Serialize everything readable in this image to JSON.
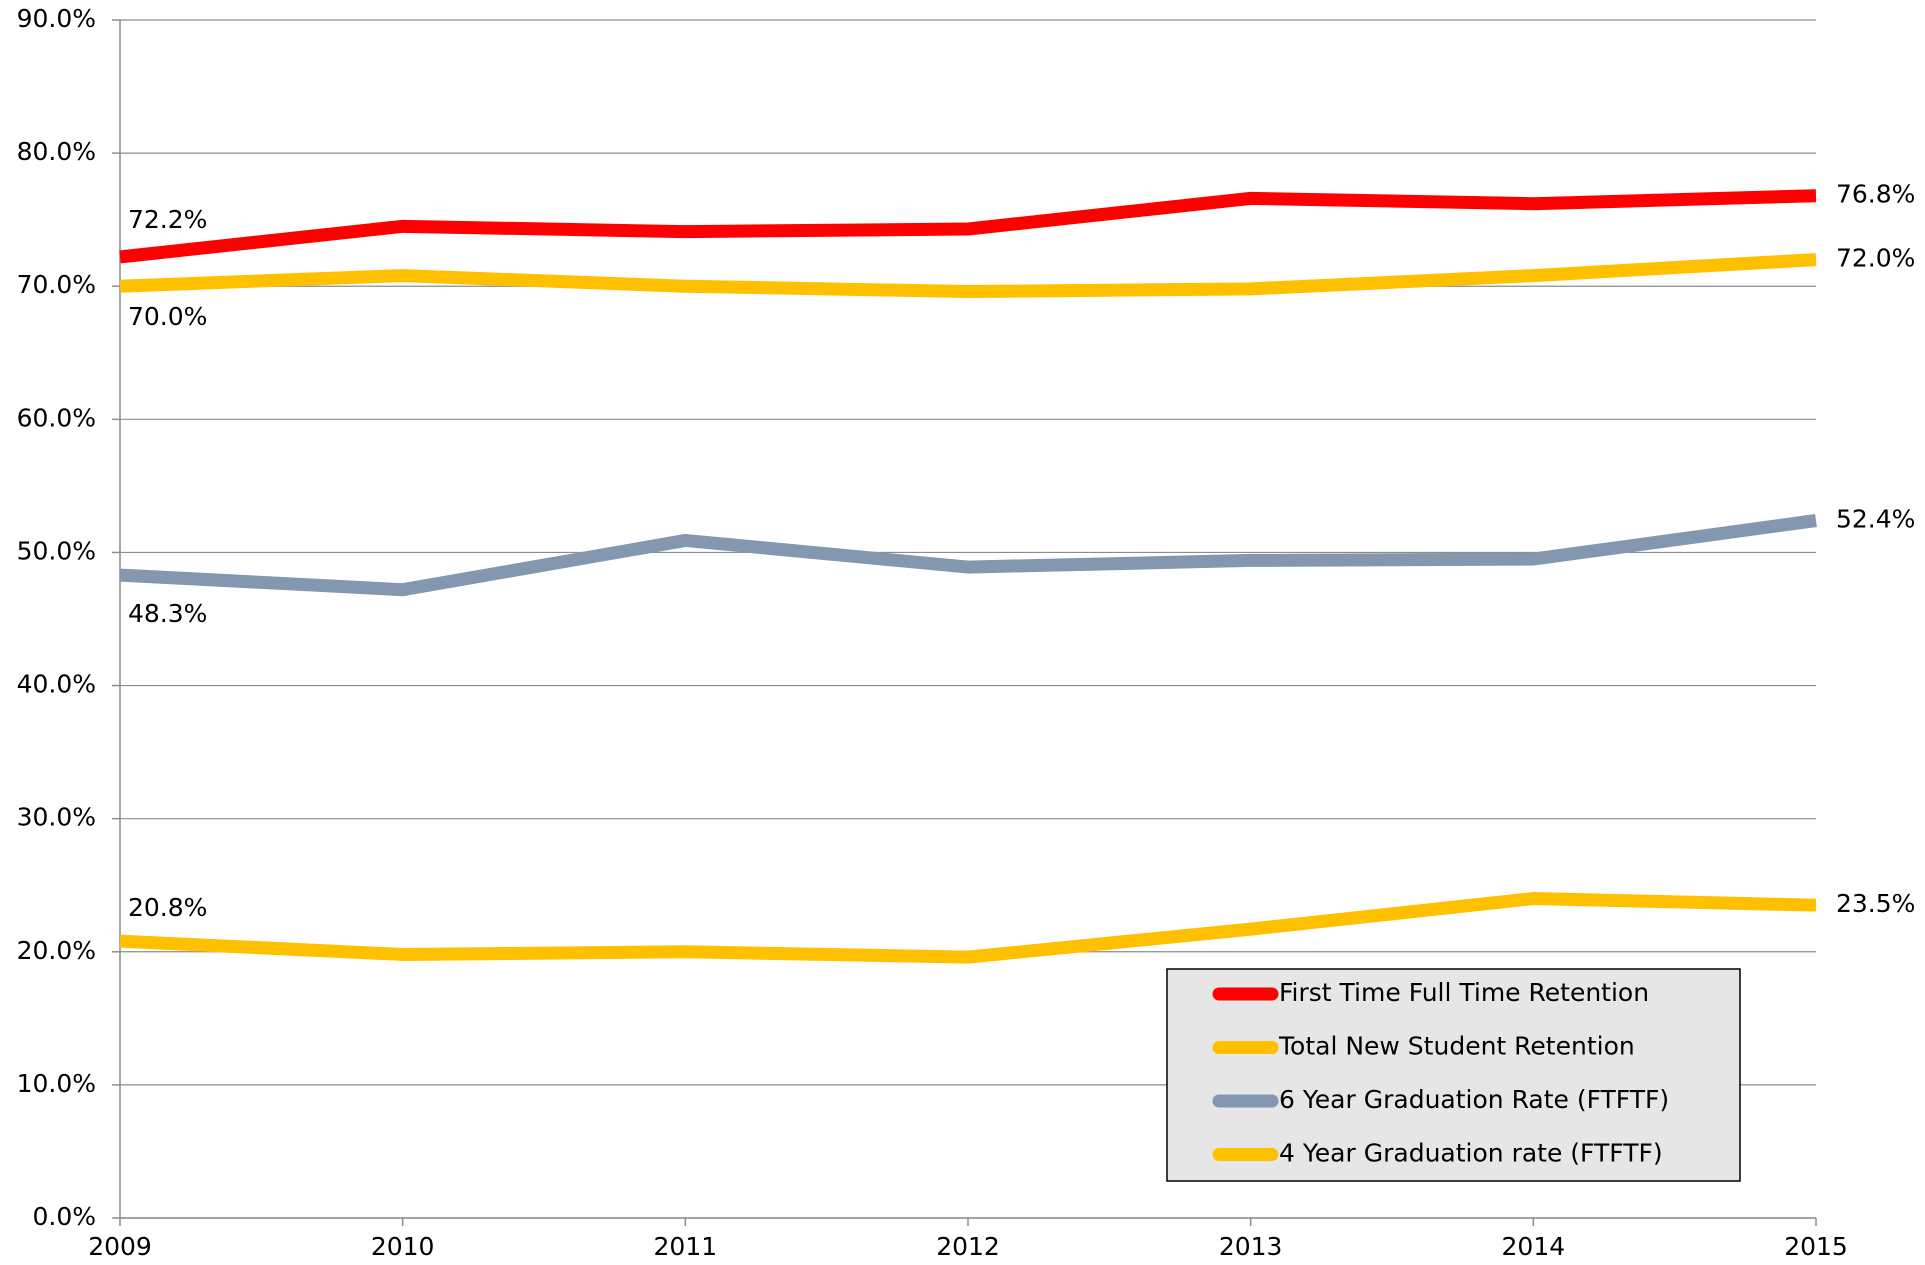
{
  "chart_data": {
    "type": "line",
    "x": [
      2009,
      2010,
      2011,
      2012,
      2013,
      2014,
      2015
    ],
    "xlim": [
      2009,
      2015
    ],
    "xticks": [
      2009,
      2010,
      2011,
      2012,
      2013,
      2014,
      2015
    ],
    "ylim": [
      0,
      90
    ],
    "yticks": [
      {
        "value": 0,
        "label": "0.0%"
      },
      {
        "value": 10,
        "label": "10.0%"
      },
      {
        "value": 20,
        "label": "20.0%"
      },
      {
        "value": 30,
        "label": "30.0%"
      },
      {
        "value": 40,
        "label": "40.0%"
      },
      {
        "value": 50,
        "label": "50.0%"
      },
      {
        "value": 60,
        "label": "60.0%"
      },
      {
        "value": 70,
        "label": "70.0%"
      },
      {
        "value": 80,
        "label": "80.0%"
      },
      {
        "value": 90,
        "label": "90.0%"
      }
    ],
    "grid": true,
    "legend": "lower right",
    "series": [
      {
        "name": "First Time Full Time Retention",
        "color": "#ff0000",
        "values": [
          72.2,
          74.5,
          74.1,
          74.3,
          76.6,
          76.2,
          76.8
        ],
        "value_labels": [
          "72.2%",
          null,
          null,
          null,
          null,
          null,
          "76.8%"
        ]
      },
      {
        "name": "Total New Student Retention",
        "color": "#ffc000",
        "values": [
          70.0,
          70.8,
          70.0,
          69.6,
          69.8,
          70.8,
          72.0
        ],
        "value_labels": [
          "70.0%",
          null,
          null,
          null,
          null,
          null,
          "72.0%"
        ]
      },
      {
        "name": "6 Year Graduation Rate (FTFTF)",
        "color": "#8497b0",
        "values": [
          48.3,
          47.2,
          50.9,
          48.9,
          49.4,
          49.5,
          52.4
        ],
        "value_labels": [
          "48.3%",
          null,
          null,
          null,
          null,
          null,
          "52.4%"
        ]
      },
      {
        "name": "4 Year Graduation rate (FTFTF)",
        "color": "#ffc000",
        "values": [
          20.8,
          19.8,
          20.0,
          19.6,
          21.7,
          24.0,
          23.5
        ],
        "value_labels": [
          "20.8%",
          null,
          null,
          null,
          null,
          null,
          "23.5%"
        ]
      }
    ]
  }
}
